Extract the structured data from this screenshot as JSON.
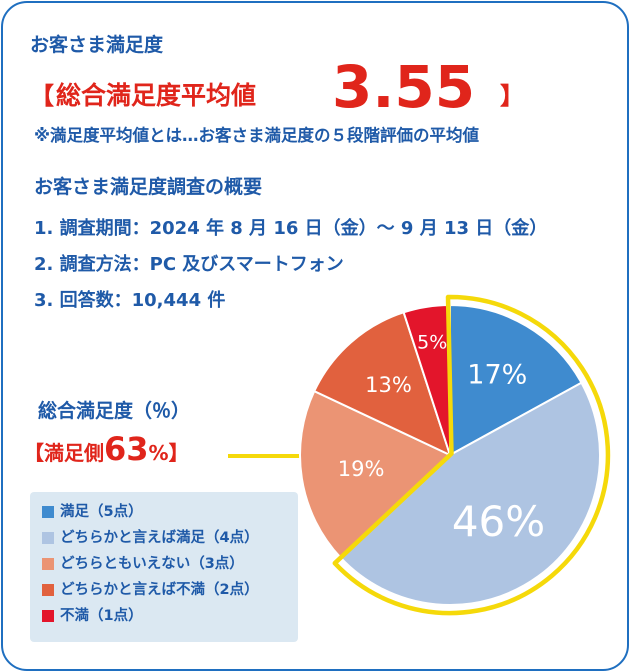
{
  "header": {
    "title": "お客さま満足度",
    "bracket_open": "【",
    "average_label": "総合満足度平均値",
    "average_value": "3.55",
    "bracket_close": "】",
    "note": "※満足度平均値とは…お客さま満足度の５段階評価の平均値"
  },
  "overview": {
    "title": "お客さま満足度調査の概要",
    "items": [
      "1. 調査期間：2024 年 8 月 16 日（金）〜 9 月 13 日（金）",
      "2. 調査方法：PC 及びスマートフォン",
      "3. 回答数：10,444 件"
    ]
  },
  "satisfaction": {
    "label": "総合満足度（％）",
    "open": "【満足側",
    "value": "63",
    "pct": "%",
    "close": "】"
  },
  "legend": [
    {
      "label": "満足（5点）",
      "color": "#3f8bcf"
    },
    {
      "label": "どちらかと言えば満足（4点）",
      "color": "#aec4e2"
    },
    {
      "label": "どちらともいえない（3点）",
      "color": "#eb9474"
    },
    {
      "label": "どちらかと言えば不満（2点）",
      "color": "#e1613e"
    },
    {
      "label": "不満（1点）",
      "color": "#e3152b"
    }
  ],
  "chart_data": {
    "type": "pie",
    "labels": [
      "満足（5点）",
      "どちらかと言えば満足（4点）",
      "どちらともいえない（3点）",
      "どちらかと言えば不満（2点）",
      "不満（1点）"
    ],
    "values": [
      17,
      46,
      19,
      13,
      5
    ],
    "value_labels": [
      "17%",
      "46%",
      "19%",
      "13%",
      "5%"
    ],
    "colors": [
      "#3f8bcf",
      "#aec4e2",
      "#eb9474",
      "#e1613e",
      "#e3152b"
    ],
    "highlight": {
      "label": "満足側",
      "value": 63,
      "slices": [
        0,
        1
      ],
      "color": "#f5d90a"
    },
    "start": "12 o'clock",
    "direction": "clockwise"
  }
}
